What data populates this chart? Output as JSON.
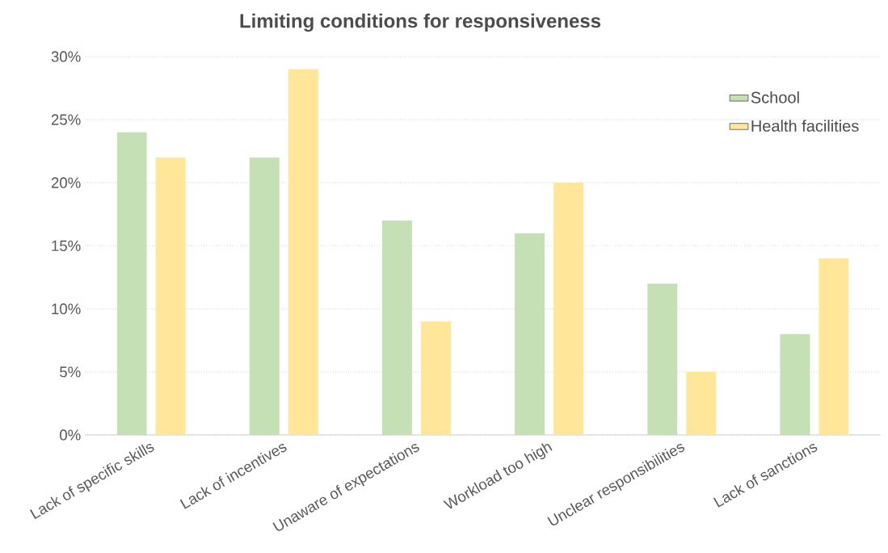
{
  "chart_data": {
    "type": "bar",
    "title": "Limiting conditions for responsiveness",
    "categories": [
      "Lack of specific skills",
      "Lack of incentives",
      "Unaware of expectations",
      "Workload too high",
      "Unclear responsibilities",
      "Lack of sanctions"
    ],
    "series": [
      {
        "name": "School",
        "color": "#c5e0b4",
        "values": [
          24,
          22,
          17,
          16,
          12,
          8
        ]
      },
      {
        "name": "Health facilities",
        "color": "#ffe699",
        "values": [
          22,
          29,
          9,
          20,
          5,
          14
        ]
      }
    ],
    "ylim": [
      0,
      30
    ],
    "yticks": [
      {
        "value": 0,
        "label": "0%"
      },
      {
        "value": 5,
        "label": "5%"
      },
      {
        "value": 10,
        "label": "10%"
      },
      {
        "value": 15,
        "label": "15%"
      },
      {
        "value": 20,
        "label": "20%"
      },
      {
        "value": 25,
        "label": "25%"
      },
      {
        "value": 30,
        "label": "30%"
      }
    ],
    "grid": "y",
    "legend": "top right"
  }
}
